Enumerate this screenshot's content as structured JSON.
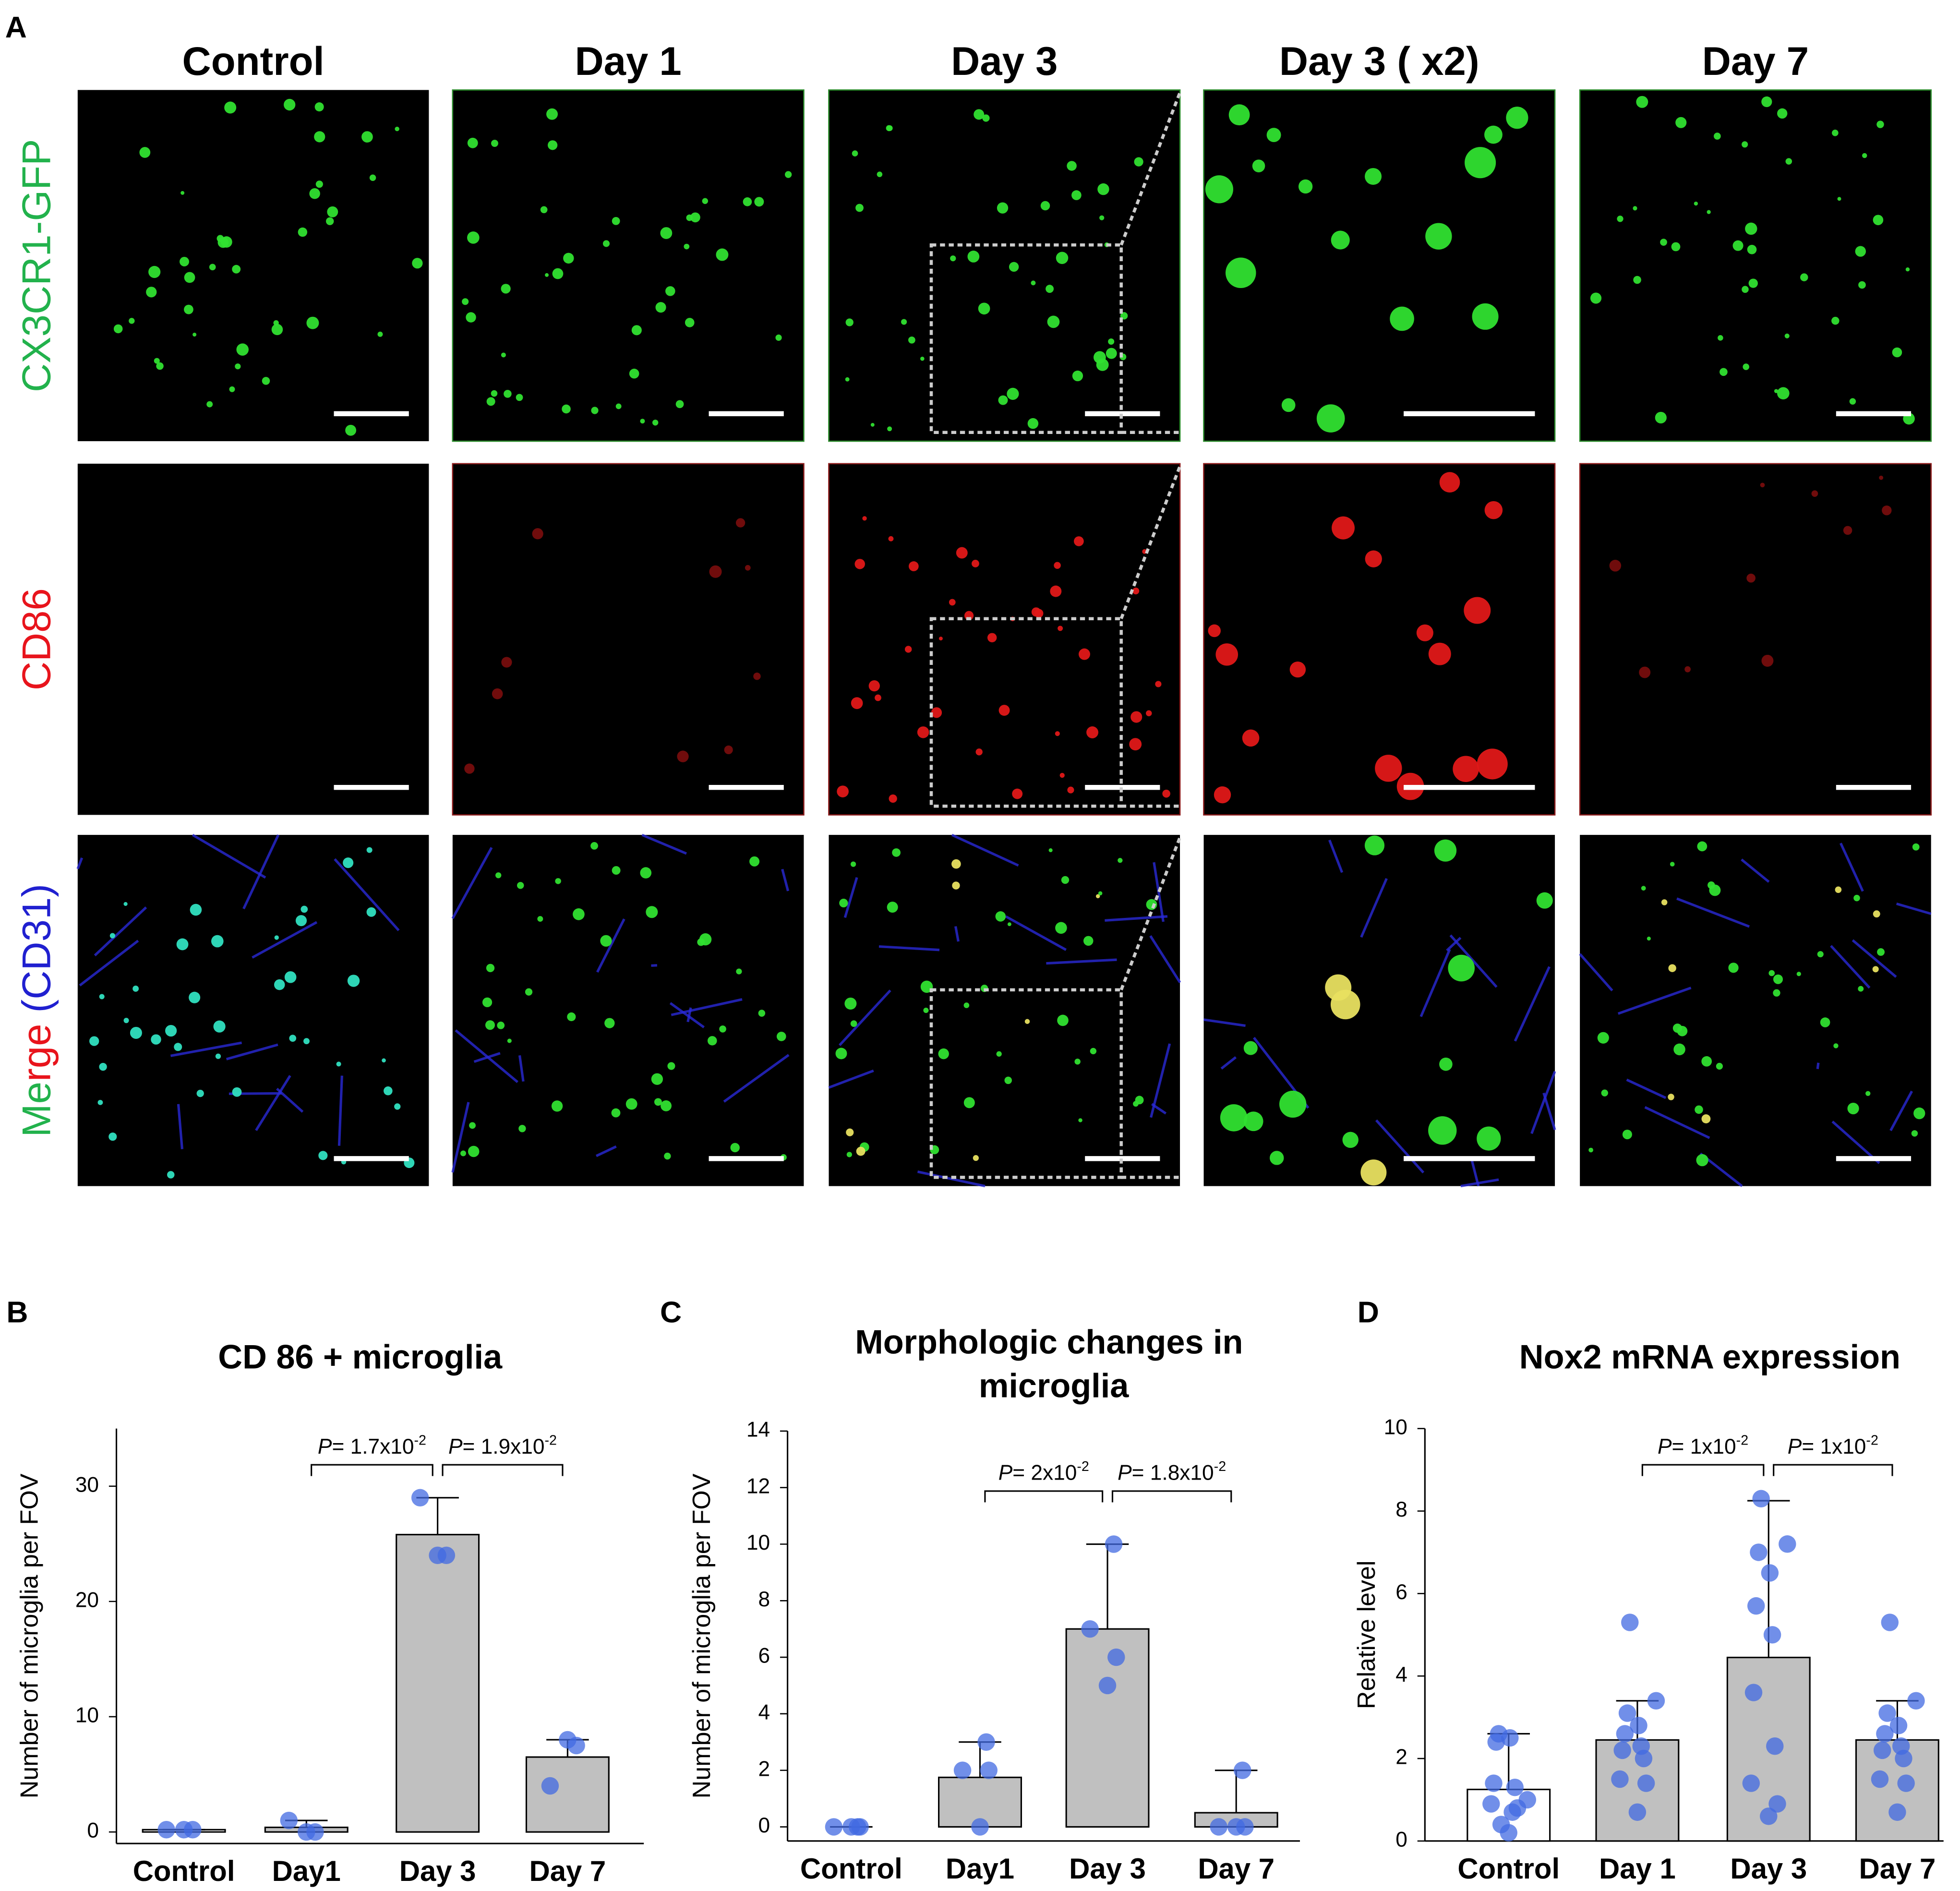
{
  "panel_a": {
    "letter": "A",
    "columns": [
      "Control",
      "Day 1",
      "Day 3",
      "Day 3 ( x2)",
      "Day 7"
    ],
    "rows": [
      {
        "parts": [
          {
            "text": "CX3CR1-GFP",
            "color": "#22b24c"
          }
        ]
      },
      {
        "parts": [
          {
            "text": "CD86",
            "color": "#e8141c"
          }
        ]
      },
      {
        "parts": [
          {
            "text": "Me",
            "color": "#22b24c"
          },
          {
            "text": "rge",
            "color": "#e8141c"
          },
          {
            "text": " (CD31)",
            "color": "#2020d0"
          }
        ]
      }
    ]
  },
  "chart_data": [
    {
      "type": "bar",
      "letter": "B",
      "title": "CD 86 + microglia",
      "ylabel": "Number of microglia per FOV",
      "categories": [
        "Control",
        "Day1",
        "Day 3",
        "Day 7"
      ],
      "values": [
        0.2,
        0.4,
        25.8,
        6.5
      ],
      "errors": [
        0,
        0.6,
        3.2,
        1.5
      ],
      "points": [
        [
          0.2,
          0.2,
          0.2
        ],
        [
          0,
          0,
          1
        ],
        [
          24,
          24,
          29
        ],
        [
          8,
          7.5,
          4
        ]
      ],
      "colors": [
        "#ffffff",
        "#c0c0c0",
        "#c0c0c0",
        "#c0c0c0"
      ],
      "point_color": "#4169e1",
      "ylim": [
        -1,
        35
      ],
      "yticks": [
        0,
        10,
        20,
        30
      ],
      "annotations": [
        {
          "p": "P",
          "text": "= 1.7x10",
          "exp": "-2"
        },
        {
          "p": "P",
          "text": "= 1.9x10",
          "exp": "-2"
        }
      ]
    },
    {
      "type": "bar",
      "letter": "C",
      "title": "Morphologic changes in microglia",
      "ylabel": "Number of microglia per FOV",
      "categories": [
        "Control",
        "Day1",
        "Day 3",
        "Day 7"
      ],
      "values": [
        0,
        1.75,
        7,
        0.5
      ],
      "errors": [
        0,
        1.25,
        3,
        1.5
      ],
      "points": [
        [
          0,
          0,
          0,
          0
        ],
        [
          0,
          2,
          2,
          3
        ],
        [
          5,
          6,
          7,
          10
        ],
        [
          0,
          0,
          0,
          2
        ]
      ],
      "colors": [
        "#ffffff",
        "#c0c0c0",
        "#c0c0c0",
        "#c0c0c0"
      ],
      "point_color": "#4169e1",
      "ylim": [
        -0.5,
        14
      ],
      "yticks": [
        0,
        2,
        4,
        6,
        8,
        10,
        12,
        14
      ],
      "annotations": [
        {
          "p": "P",
          "text": "= 2x10",
          "exp": "-2"
        },
        {
          "p": "P",
          "text": "= 1.8x10",
          "exp": "-2"
        }
      ]
    },
    {
      "type": "bar",
      "letter": "D",
      "title": "Nox2 mRNA expression",
      "ylabel": "Relative level",
      "categories": [
        "Control",
        "Day 1",
        "Day 3",
        "Day 7"
      ],
      "values": [
        1.25,
        2.45,
        4.45,
        2.45
      ],
      "errors": [
        1.35,
        0.95,
        3.8,
        0.95
      ],
      "points": [
        [
          0.2,
          0.8,
          0.9,
          1.3,
          1.4,
          0.7,
          2.4,
          2.5,
          2.6,
          1.0,
          0.4
        ],
        [
          0.7,
          1.4,
          1.5,
          2.0,
          2.2,
          2.3,
          2.6,
          2.8,
          3.1,
          3.4,
          5.3
        ],
        [
          0.6,
          0.9,
          1.4,
          2.3,
          3.6,
          5.0,
          5.7,
          6.5,
          7.0,
          7.2,
          8.3
        ],
        [
          0.7,
          1.4,
          1.5,
          2.0,
          2.2,
          2.3,
          2.6,
          2.8,
          3.1,
          3.4,
          5.3
        ]
      ],
      "colors": [
        "#ffffff",
        "#c0c0c0",
        "#c0c0c0",
        "#c0c0c0"
      ],
      "point_color": "#4169e1",
      "ylim": [
        0,
        10
      ],
      "yticks": [
        0,
        2,
        4,
        6,
        8,
        10
      ],
      "annotations": [
        {
          "p": "P",
          "text": "= 1x10",
          "exp": "-2"
        },
        {
          "p": "P",
          "text": "= 1x10",
          "exp": "-2"
        }
      ]
    }
  ]
}
